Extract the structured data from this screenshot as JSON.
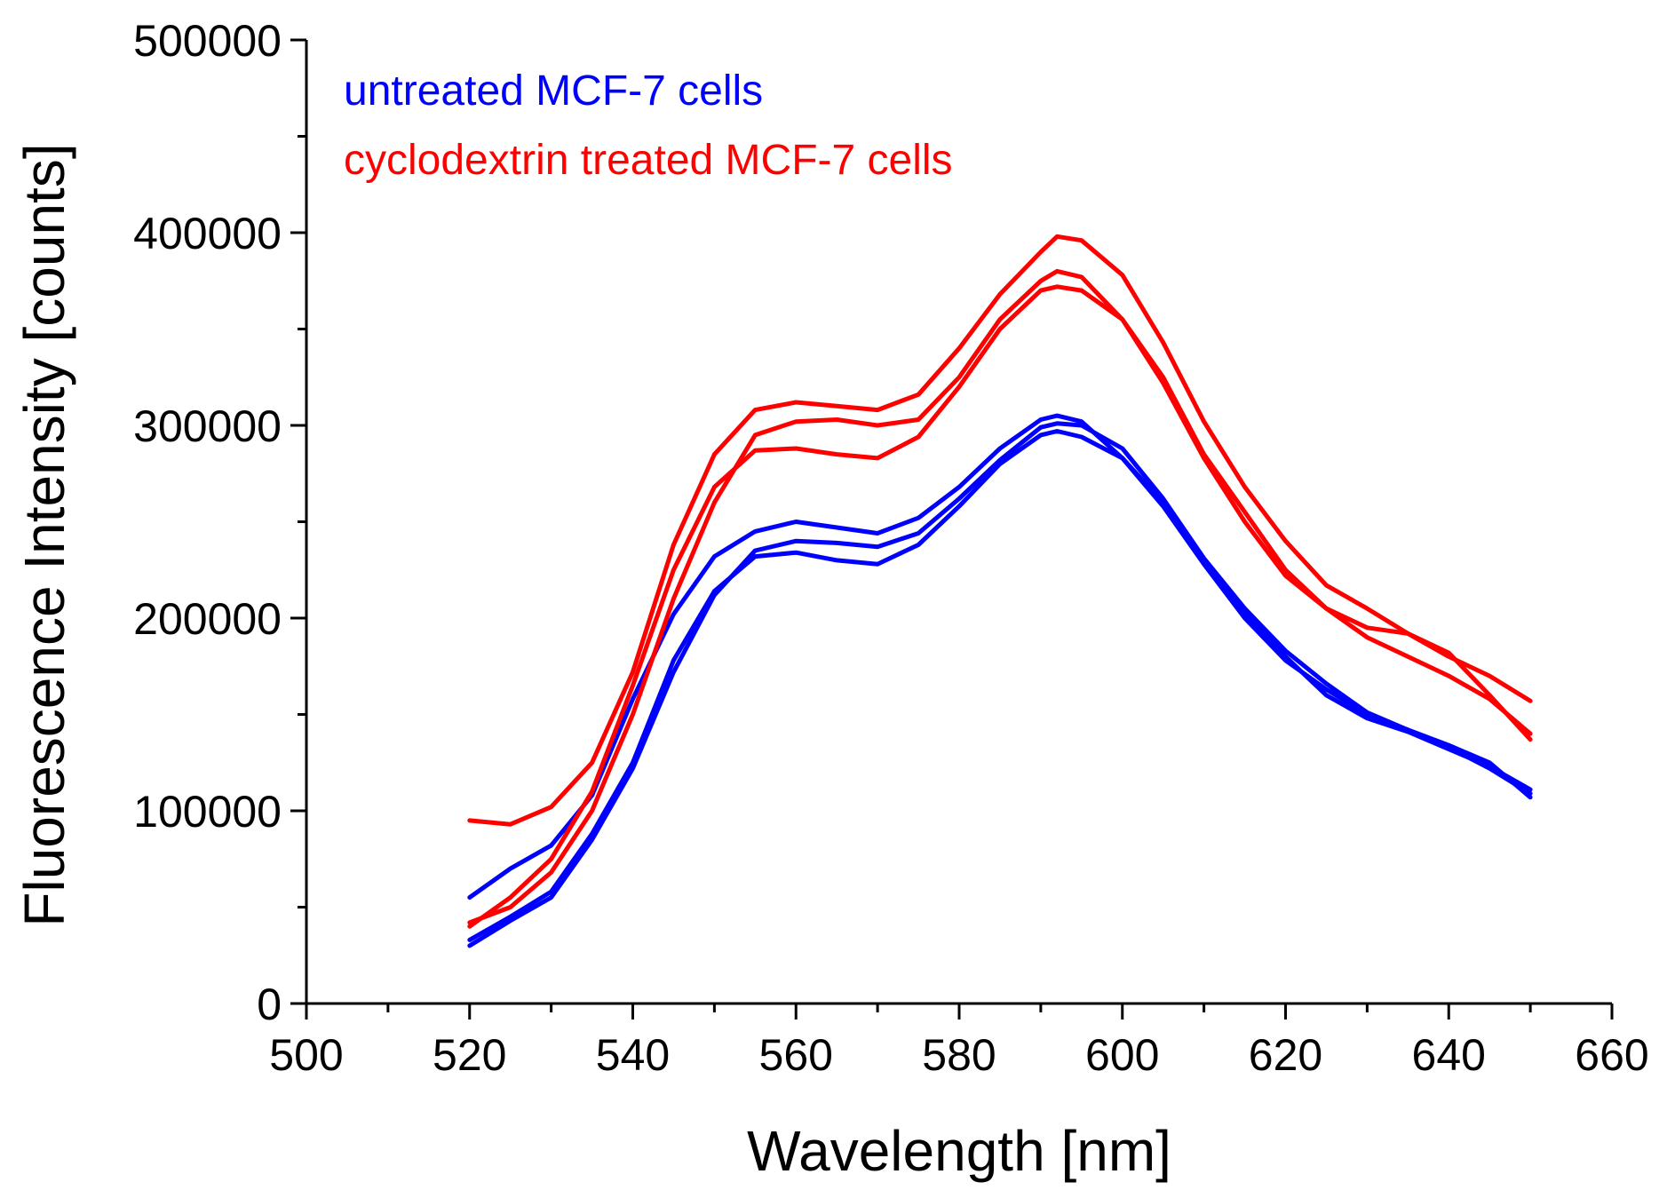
{
  "chart_data": {
    "type": "line",
    "title": "",
    "xlabel": "Wavelength [nm]",
    "ylabel": "Fluorescence Intensity [counts]",
    "xlim": [
      500,
      660
    ],
    "ylim": [
      0,
      500000
    ],
    "x_ticks": [
      500,
      520,
      540,
      560,
      580,
      600,
      620,
      640,
      660
    ],
    "y_ticks": [
      0,
      100000,
      200000,
      300000,
      400000,
      500000
    ],
    "grid": false,
    "legend_position": "top-left",
    "legend": [
      {
        "label": "untreated MCF-7 cells",
        "color": "#0000ff"
      },
      {
        "label": "cyclodextrin treated MCF-7 cells",
        "color": "#ff0000"
      }
    ],
    "x": [
      520,
      525,
      530,
      535,
      540,
      545,
      550,
      555,
      560,
      565,
      570,
      575,
      580,
      585,
      590,
      592,
      595,
      600,
      605,
      610,
      615,
      620,
      625,
      630,
      635,
      640,
      645,
      650
    ],
    "series": [
      {
        "name": "untreated MCF-7 cells (1)",
        "group": "untreated MCF-7 cells",
        "color": "#0000ff",
        "values": [
          55000,
          70000,
          82000,
          108000,
          158000,
          202000,
          232000,
          245000,
          250000,
          247000,
          244000,
          252000,
          268000,
          288000,
          303000,
          305000,
          302000,
          283000,
          258000,
          228000,
          200000,
          178000,
          163000,
          150000,
          142000,
          133000,
          122000,
          109000
        ]
      },
      {
        "name": "untreated MCF-7 cells (2)",
        "group": "untreated MCF-7 cells",
        "color": "#0000ff",
        "values": [
          33000,
          45000,
          58000,
          88000,
          125000,
          178000,
          214000,
          232000,
          234000,
          230000,
          228000,
          238000,
          258000,
          280000,
          295000,
          297000,
          294000,
          283000,
          260000,
          230000,
          203000,
          180000,
          160000,
          148000,
          141000,
          132000,
          123000,
          111000
        ]
      },
      {
        "name": "untreated MCF-7 cells (3)",
        "group": "untreated MCF-7 cells",
        "color": "#0000ff",
        "values": [
          30000,
          43000,
          55000,
          85000,
          122000,
          172000,
          212000,
          235000,
          240000,
          239000,
          237000,
          244000,
          262000,
          282000,
          299000,
          301000,
          300000,
          288000,
          262000,
          231000,
          205000,
          183000,
          166000,
          151000,
          142000,
          134000,
          125000,
          107000
        ]
      },
      {
        "name": "cyclodextrin treated MCF-7 cells (1)",
        "group": "cyclodextrin treated MCF-7 cells",
        "color": "#ff0000",
        "values": [
          95000,
          93000,
          102000,
          125000,
          172000,
          238000,
          285000,
          308000,
          312000,
          310000,
          308000,
          316000,
          340000,
          368000,
          390000,
          398000,
          396000,
          378000,
          343000,
          302000,
          268000,
          240000,
          217000,
          205000,
          192000,
          180000,
          170000,
          157000
        ]
      },
      {
        "name": "cyclodextrin treated MCF-7 cells (2)",
        "group": "cyclodextrin treated MCF-7 cells",
        "color": "#ff0000",
        "values": [
          40000,
          55000,
          75000,
          110000,
          165000,
          225000,
          268000,
          287000,
          288000,
          285000,
          283000,
          294000,
          320000,
          350000,
          370000,
          372000,
          370000,
          355000,
          325000,
          285000,
          255000,
          225000,
          205000,
          190000,
          180000,
          170000,
          158000,
          140000
        ]
      },
      {
        "name": "cyclodextrin treated MCF-7 cells (3)",
        "group": "cyclodextrin treated MCF-7 cells",
        "color": "#ff0000",
        "values": [
          42000,
          50000,
          68000,
          100000,
          150000,
          210000,
          260000,
          295000,
          302000,
          303000,
          300000,
          303000,
          325000,
          355000,
          375000,
          380000,
          377000,
          355000,
          322000,
          283000,
          250000,
          222000,
          205000,
          195000,
          192000,
          182000,
          160000,
          137000
        ]
      }
    ]
  }
}
